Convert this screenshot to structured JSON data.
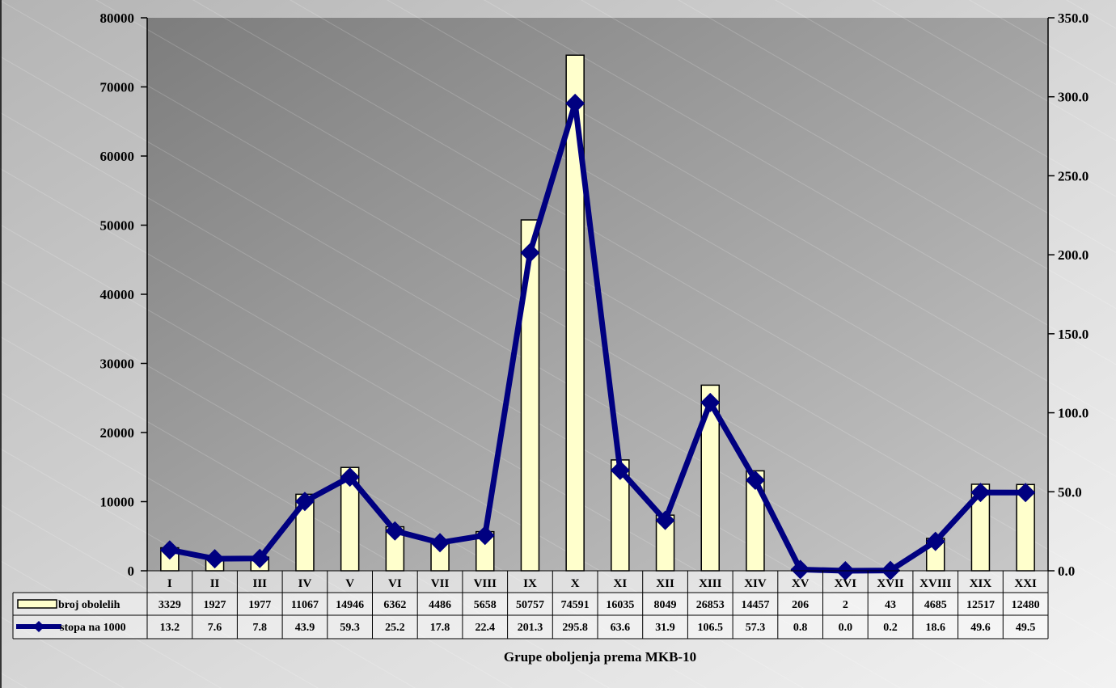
{
  "chart_data": {
    "type": "bar",
    "categories": [
      "I",
      "II",
      "III",
      "IV",
      "V",
      "VI",
      "VII",
      "VIII",
      "IX",
      "X",
      "XI",
      "XII",
      "XIII",
      "XIV",
      "XV",
      "XVI",
      "XVII",
      "XVIII",
      "XIX",
      "XXI"
    ],
    "series": [
      {
        "name": "broj obolelih",
        "type": "bar",
        "axis": "left",
        "values": [
          3329,
          1927,
          1977,
          11067,
          14946,
          6362,
          4486,
          5658,
          50757,
          74591,
          16035,
          8049,
          26853,
          14457,
          206,
          2,
          43,
          4685,
          12517,
          12480
        ],
        "labels": [
          "3329",
          "1927",
          "1977",
          "11067",
          "14946",
          "6362",
          "4486",
          "5658",
          "50757",
          "74591",
          "16035",
          "8049",
          "26853",
          "14457",
          "206",
          "2",
          "43",
          "4685",
          "12517",
          "12480"
        ]
      },
      {
        "name": "stopa na 1000",
        "type": "line",
        "axis": "right",
        "values": [
          13.2,
          7.6,
          7.8,
          43.9,
          59.3,
          25.2,
          17.8,
          22.4,
          201.3,
          295.8,
          63.6,
          31.9,
          106.5,
          57.3,
          0.8,
          0.0,
          0.2,
          18.6,
          49.6,
          49.5
        ],
        "labels": [
          "13.2",
          "7.6",
          "7.8",
          "43.9",
          "59.3",
          "25.2",
          "17.8",
          "22.4",
          "201.3",
          "295.8",
          "63.6",
          "31.9",
          "106.5",
          "57.3",
          "0.8",
          "0.0",
          "0.2",
          "18.6",
          "49.6",
          "49.5"
        ]
      }
    ],
    "xlabel": "Grupe oboljenja prema MKB-10",
    "ylim_left": [
      0,
      80000
    ],
    "ylim_right": [
      0,
      350
    ],
    "yticks_left": [
      "0",
      "10000",
      "20000",
      "30000",
      "40000",
      "50000",
      "60000",
      "70000",
      "80000"
    ],
    "yticks_right": [
      "0.0",
      "50.0",
      "100.0",
      "150.0",
      "200.0",
      "250.0",
      "300.0",
      "350.0"
    ],
    "legend": "data-table",
    "colors": {
      "bar_fill": "#ffffcc",
      "bar_stroke": "#000000",
      "line": "#000080",
      "plot_bg_dark": "#7f7f7f",
      "plot_bg_light": "#c4c4c4",
      "page_bg_dark": "#b4b4b4",
      "page_bg_light": "#f2f2f2"
    }
  }
}
